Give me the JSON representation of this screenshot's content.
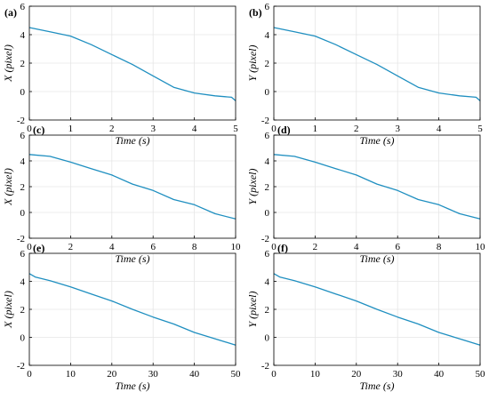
{
  "colors": {
    "line": "#1f8fc0",
    "grid": "#e6e6e6",
    "axis": "#000000"
  },
  "chart_data": [
    {
      "type": "line",
      "label": "(a)",
      "xlabel": "Time (s)",
      "ylabel": "X (pixel)",
      "xlim": [
        0,
        5
      ],
      "ylim": [
        -2,
        6
      ],
      "xticks": [
        "0",
        "1",
        "2",
        "3",
        "4",
        "5"
      ],
      "yticks": [
        "-2",
        "0",
        "2",
        "4",
        "6"
      ],
      "grid": true,
      "series": [
        {
          "x": [
            0,
            0.5,
            1,
            1.5,
            2,
            2.5,
            3,
            3.5,
            4,
            4.5,
            4.9,
            5
          ],
          "y": [
            4.5,
            4.2,
            3.9,
            3.3,
            2.6,
            1.9,
            1.1,
            0.3,
            -0.1,
            -0.3,
            -0.4,
            -0.65
          ]
        }
      ]
    },
    {
      "type": "line",
      "label": "(b)",
      "xlabel": "Time (s)",
      "ylabel": "Y (pixel)",
      "xlim": [
        0,
        5
      ],
      "ylim": [
        -2,
        6
      ],
      "xticks": [
        "0",
        "1",
        "2",
        "3",
        "4",
        "5"
      ],
      "yticks": [
        "-2",
        "0",
        "2",
        "4",
        "6"
      ],
      "grid": true,
      "series": [
        {
          "x": [
            0,
            0.5,
            1,
            1.5,
            2,
            2.5,
            3,
            3.5,
            4,
            4.5,
            4.9,
            5
          ],
          "y": [
            4.5,
            4.2,
            3.9,
            3.3,
            2.6,
            1.9,
            1.1,
            0.3,
            -0.1,
            -0.3,
            -0.4,
            -0.65
          ]
        }
      ]
    },
    {
      "type": "line",
      "label": "(c)",
      "xlabel": "Time (s)",
      "ylabel": "X (pixel)",
      "xlim": [
        0,
        10
      ],
      "ylim": [
        -2,
        6
      ],
      "xticks": [
        "0",
        "2",
        "4",
        "6",
        "8",
        "10"
      ],
      "yticks": [
        "-2",
        "0",
        "2",
        "4",
        "6"
      ],
      "grid": true,
      "series": [
        {
          "x": [
            0,
            1,
            2,
            3,
            4,
            5,
            6,
            7,
            8,
            9,
            10
          ],
          "y": [
            4.5,
            4.35,
            3.9,
            3.4,
            2.9,
            2.2,
            1.7,
            1.0,
            0.6,
            -0.1,
            -0.5
          ]
        }
      ]
    },
    {
      "type": "line",
      "label": "(d)",
      "xlabel": "Time (s)",
      "ylabel": "Y (pixel)",
      "xlim": [
        0,
        10
      ],
      "ylim": [
        -2,
        6
      ],
      "xticks": [
        "0",
        "2",
        "4",
        "6",
        "8",
        "10"
      ],
      "yticks": [
        "-2",
        "0",
        "2",
        "4",
        "6"
      ],
      "grid": true,
      "series": [
        {
          "x": [
            0,
            1,
            2,
            3,
            4,
            5,
            6,
            7,
            8,
            9,
            10
          ],
          "y": [
            4.5,
            4.35,
            3.9,
            3.4,
            2.9,
            2.2,
            1.7,
            1.0,
            0.6,
            -0.1,
            -0.5
          ]
        }
      ]
    },
    {
      "type": "line",
      "label": "(e)",
      "xlabel": "Time (s)",
      "ylabel": "X (pixel)",
      "xlim": [
        0,
        50
      ],
      "ylim": [
        -2,
        6
      ],
      "xticks": [
        "0",
        "10",
        "20",
        "30",
        "40",
        "50"
      ],
      "yticks": [
        "-2",
        "0",
        "2",
        "4",
        "6"
      ],
      "grid": true,
      "series": [
        {
          "x": [
            0,
            1.5,
            5,
            10,
            15,
            20,
            25,
            30,
            35,
            40,
            45,
            50
          ],
          "y": [
            4.55,
            4.3,
            4.05,
            3.6,
            3.1,
            2.6,
            2.0,
            1.45,
            0.95,
            0.35,
            -0.1,
            -0.55
          ]
        }
      ]
    },
    {
      "type": "line",
      "label": "(f)",
      "xlabel": "Time (s)",
      "ylabel": "Y (pixel)",
      "xlim": [
        0,
        50
      ],
      "ylim": [
        -2,
        6
      ],
      "xticks": [
        "0",
        "10",
        "20",
        "30",
        "40",
        "50"
      ],
      "yticks": [
        "-2",
        "0",
        "2",
        "4",
        "6"
      ],
      "grid": true,
      "series": [
        {
          "x": [
            0,
            1.5,
            5,
            10,
            15,
            20,
            25,
            30,
            35,
            40,
            45,
            50
          ],
          "y": [
            4.55,
            4.3,
            4.05,
            3.6,
            3.1,
            2.6,
            2.0,
            1.45,
            0.95,
            0.35,
            -0.1,
            -0.55
          ]
        }
      ]
    }
  ]
}
